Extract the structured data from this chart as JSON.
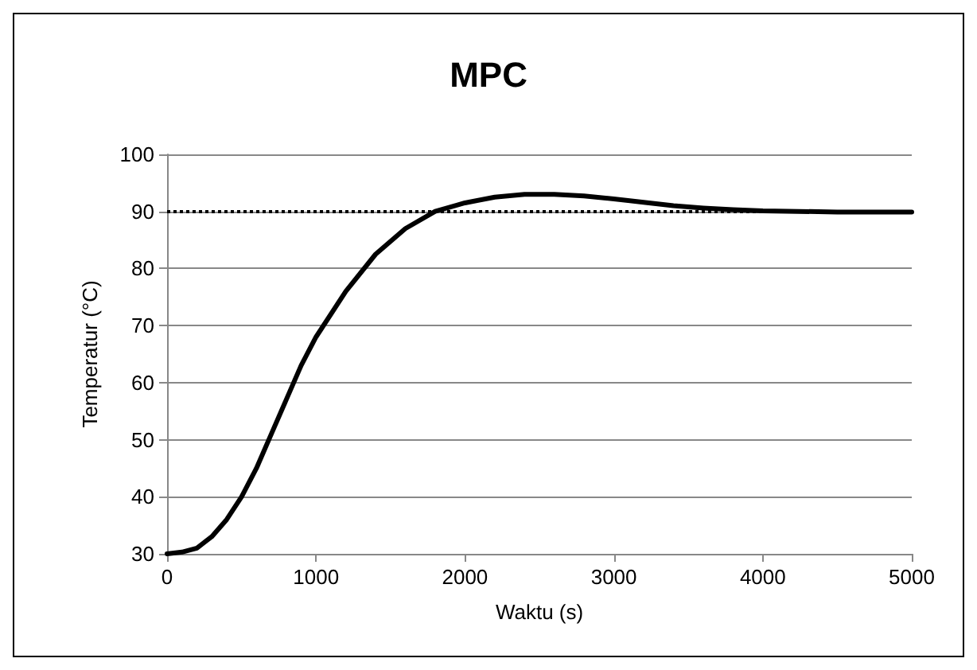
{
  "chart_data": {
    "type": "line",
    "title": "MPC",
    "xlabel": "Waktu (s)",
    "ylabel": "Temperatur (°C)",
    "x": [
      0,
      100,
      200,
      300,
      400,
      500,
      600,
      700,
      800,
      900,
      1000,
      1200,
      1400,
      1600,
      1800,
      2000,
      2200,
      2400,
      2600,
      2800,
      3000,
      3200,
      3400,
      3600,
      3800,
      4000,
      4500,
      5000
    ],
    "series": [
      {
        "color": "#000000",
        "values": [
          30,
          30.3,
          31,
          33,
          36,
          40,
          45,
          51,
          57,
          63,
          68,
          76,
          82.5,
          87,
          90,
          91.5,
          92.5,
          93,
          93,
          92.7,
          92.2,
          91.6,
          91,
          90.6,
          90.3,
          90.1,
          89.9,
          89.9
        ]
      }
    ],
    "xlim": [
      0,
      5000
    ],
    "xticks": [
      0,
      1000,
      2000,
      3000,
      4000,
      5000
    ],
    "ylim": [
      30,
      100
    ],
    "yticks": [
      30,
      40,
      50,
      60,
      70,
      80,
      90,
      100
    ],
    "ref_lines": [
      {
        "axis": "y",
        "value": 90,
        "color": "#000000",
        "line_style": "dotted"
      }
    ],
    "grid": "y",
    "marker": "none",
    "line_style": "solid"
  }
}
